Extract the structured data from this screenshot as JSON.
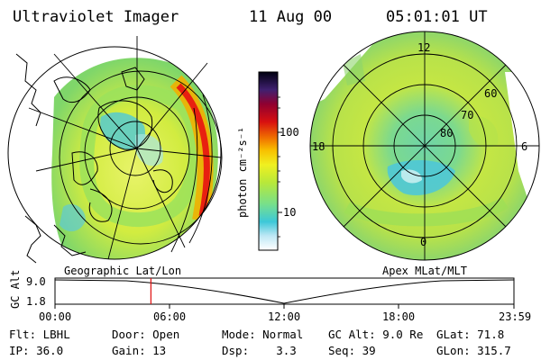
{
  "header": {
    "title": "Ultraviolet Imager",
    "date": "11 Aug 00",
    "time": "05:01:01 UT"
  },
  "colorbar": {
    "unit_label": "photon cm⁻²s⁻¹",
    "ticks": [
      "100",
      "10"
    ]
  },
  "left_map": {
    "caption": "Geographic Lat/Lon"
  },
  "right_map": {
    "caption": "Apex MLat/MLT",
    "mlt_labels": {
      "top": "12",
      "left": "18",
      "right": "6",
      "bottom": "0"
    },
    "lat_labels": [
      "60",
      "70",
      "80"
    ]
  },
  "altitude_plot": {
    "ylabel": "GC Alt",
    "yticks": [
      "9.0",
      "1.8"
    ],
    "xticks": [
      "00:00",
      "06:00",
      "12:00",
      "18:00",
      "23:59"
    ],
    "current_time_fraction": 0.209,
    "marker_color": "#e01010"
  },
  "info": {
    "row1": {
      "filter": "Flt: LBHL",
      "door": "Door: Open",
      "mode": "Mode: Normal",
      "gc_alt": "GC Alt: 9.0 Re",
      "glat": "GLat: 71.8"
    },
    "row2": {
      "ip": "IP: 36.0",
      "gain": "Gain: 13",
      "dsp": "Dsp:    3.3",
      "seq": "Seq: 39",
      "glon": "GLon: 315.7"
    }
  }
}
